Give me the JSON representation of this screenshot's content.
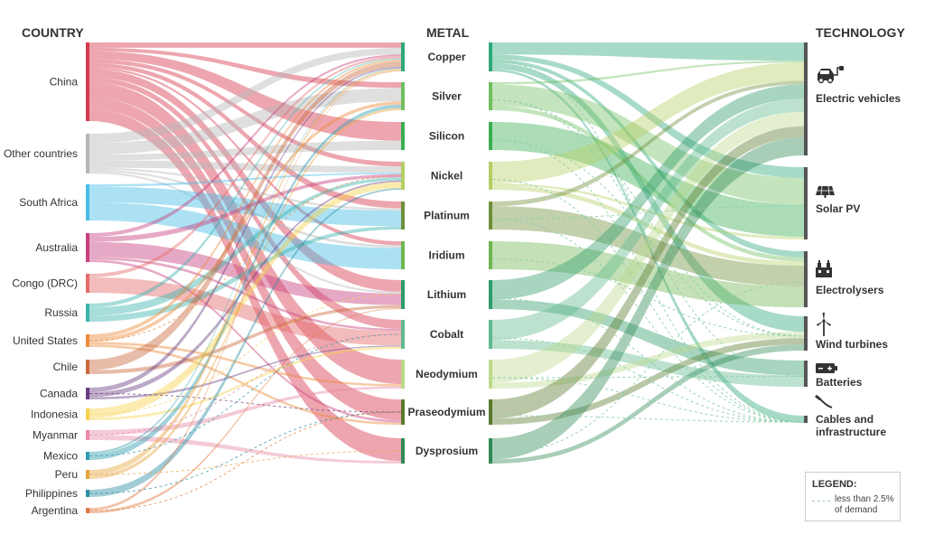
{
  "headers": {
    "country": "COUNTRY",
    "metal": "METAL",
    "technology": "TECHNOLOGY"
  },
  "countries": [
    {
      "name": "China",
      "color": "#d63a4e"
    },
    {
      "name": "Other countries",
      "color": "#b7b7b7"
    },
    {
      "name": "South Africa",
      "color": "#48bde6"
    },
    {
      "name": "Australia",
      "color": "#c8407f"
    },
    {
      "name": "Congo (DRC)",
      "color": "#e56b6a"
    },
    {
      "name": "Russia",
      "color": "#3cb3ac"
    },
    {
      "name": "United States",
      "color": "#eb8c3c"
    },
    {
      "name": "Chile",
      "color": "#c96a3e"
    },
    {
      "name": "Canada",
      "color": "#6b3d83"
    },
    {
      "name": "Indonesia",
      "color": "#f6d24e"
    },
    {
      "name": "Myanmar",
      "color": "#e889a7"
    },
    {
      "name": "Mexico",
      "color": "#2f9bb0"
    },
    {
      "name": "Peru",
      "color": "#e6a33e"
    },
    {
      "name": "Philippines",
      "color": "#2c8fa3"
    },
    {
      "name": "Argentina",
      "color": "#e07a40"
    }
  ],
  "metals": [
    {
      "name": "Copper",
      "color": "#2ea87a"
    },
    {
      "name": "Silver",
      "color": "#6fbf5f"
    },
    {
      "name": "Silicon",
      "color": "#3aae52"
    },
    {
      "name": "Nickel",
      "color": "#b4cf63"
    },
    {
      "name": "Platinum",
      "color": "#6d8f3a"
    },
    {
      "name": "Iridium",
      "color": "#6fb650"
    },
    {
      "name": "Lithium",
      "color": "#2e9c6a"
    },
    {
      "name": "Cobalt",
      "color": "#5fba8c"
    },
    {
      "name": "Neodymium",
      "color": "#bcd98a"
    },
    {
      "name": "Praseodymium",
      "color": "#5a7a2e"
    },
    {
      "name": "Dysprosium",
      "color": "#2f8a55"
    }
  ],
  "technologies": [
    {
      "name": "Electric vehicles",
      "icon": "electric-car-icon"
    },
    {
      "name": "Solar PV",
      "icon": "solar-panel-icon"
    },
    {
      "name": "Electrolysers",
      "icon": "electrolyser-icon"
    },
    {
      "name": "Wind turbines",
      "icon": "wind-turbine-icon"
    },
    {
      "name": "Batteries",
      "icon": "battery-icon"
    },
    {
      "name": "Cables and infrastructure",
      "lines": [
        "Cables and",
        "infrastructure"
      ],
      "icon": "cable-icon"
    }
  ],
  "legend": {
    "title": "LEGEND:",
    "text": "less than 2.5% of demand"
  }
}
